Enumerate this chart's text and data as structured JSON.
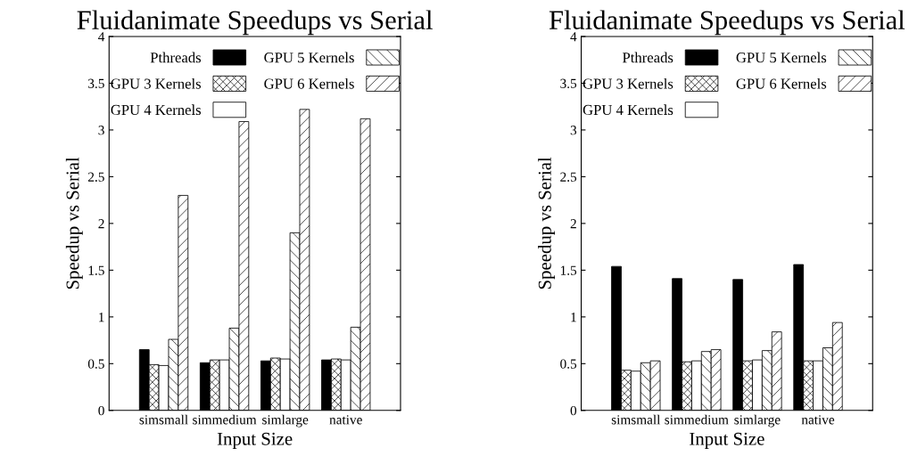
{
  "chart_data": [
    {
      "type": "bar",
      "title": "Fluidanimate Speedups vs Serial",
      "xlabel": "Input Size",
      "ylabel": "Speedup vs Serial",
      "categories": [
        "simsmall",
        "simmedium",
        "simlarge",
        "native"
      ],
      "series": [
        {
          "name": "Pthreads",
          "color": "#000000",
          "values": [
            0.65,
            0.51,
            0.53,
            0.54
          ]
        },
        {
          "name": "GPU 3 Kernels",
          "color": "#000000",
          "values": [
            0.49,
            0.54,
            0.56,
            0.55
          ]
        },
        {
          "name": "GPU 4 Kernels",
          "color": "#ffffff",
          "values": [
            0.48,
            0.54,
            0.55,
            0.54
          ]
        },
        {
          "name": "GPU 5 Kernels",
          "color": "#000000",
          "values": [
            0.76,
            0.88,
            1.9,
            0.89
          ]
        },
        {
          "name": "GPU 6 Kernels",
          "color": "#000000",
          "values": [
            2.3,
            3.09,
            3.22,
            3.12
          ]
        }
      ],
      "ylim": [
        0,
        4
      ],
      "yticks": [
        0,
        0.5,
        1,
        1.5,
        2,
        2.5,
        3,
        3.5,
        4
      ],
      "legend": "top",
      "grid": false
    },
    {
      "type": "bar",
      "title": "Fluidanimate Speedups vs Serial",
      "xlabel": "Input Size",
      "ylabel": "Speedup vs Serial",
      "categories": [
        "simsmall",
        "simmedium",
        "simlarge",
        "native"
      ],
      "series": [
        {
          "name": "Pthreads",
          "color": "#000000",
          "values": [
            1.54,
            1.41,
            1.4,
            1.56
          ]
        },
        {
          "name": "GPU 3 Kernels",
          "color": "#000000",
          "values": [
            0.43,
            0.52,
            0.53,
            0.53
          ]
        },
        {
          "name": "GPU 4 Kernels",
          "color": "#ffffff",
          "values": [
            0.42,
            0.53,
            0.54,
            0.53
          ]
        },
        {
          "name": "GPU 5 Kernels",
          "color": "#000000",
          "values": [
            0.51,
            0.63,
            0.64,
            0.67
          ]
        },
        {
          "name": "GPU 6 Kernels",
          "color": "#000000",
          "values": [
            0.53,
            0.65,
            0.84,
            0.94
          ]
        }
      ],
      "ylim": [
        0,
        4
      ],
      "yticks": [
        0,
        0.5,
        1,
        1.5,
        2,
        2.5,
        3,
        3.5,
        4
      ],
      "legend": "top",
      "grid": false
    }
  ]
}
